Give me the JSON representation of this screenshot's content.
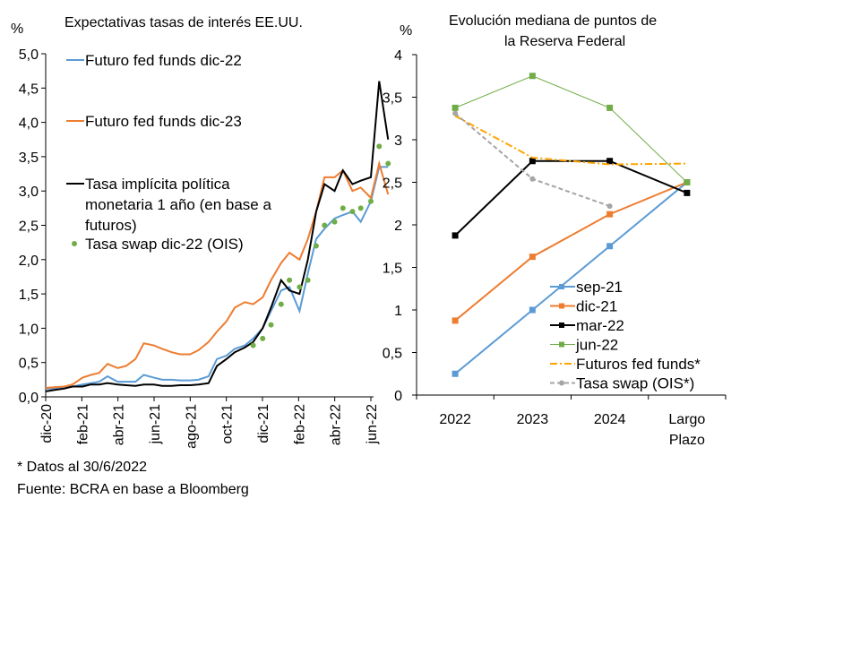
{
  "chart_data": [
    {
      "type": "line",
      "title": "Expectativas tasas de interés EE.UU.",
      "ylabel": "%",
      "ylim": [
        0,
        5
      ],
      "yticks": [
        "0,0",
        "0,5",
        "1,0",
        "1,5",
        "2,0",
        "2,5",
        "3,0",
        "3,5",
        "4,0",
        "4,5",
        "5,0"
      ],
      "xticks": [
        "dic-20",
        "feb-21",
        "abr-21",
        "jun-21",
        "ago-21",
        "oct-21",
        "dic-21",
        "feb-22",
        "abr-22",
        "jun-22"
      ],
      "grid": false,
      "legend": "top-left",
      "x": [
        "2020-12-01",
        "2020-12-15",
        "2021-01-01",
        "2021-01-15",
        "2021-02-01",
        "2021-02-15",
        "2021-03-01",
        "2021-03-15",
        "2021-04-01",
        "2021-04-15",
        "2021-05-01",
        "2021-05-15",
        "2021-06-01",
        "2021-06-15",
        "2021-07-01",
        "2021-07-15",
        "2021-08-01",
        "2021-08-15",
        "2021-09-01",
        "2021-09-15",
        "2021-10-01",
        "2021-10-15",
        "2021-11-01",
        "2021-11-15",
        "2021-12-01",
        "2021-12-15",
        "2022-01-01",
        "2022-01-15",
        "2022-02-01",
        "2022-02-15",
        "2022-03-01",
        "2022-03-15",
        "2022-04-01",
        "2022-04-15",
        "2022-05-01",
        "2022-05-15",
        "2022-06-01",
        "2022-06-15",
        "2022-06-30"
      ],
      "series": [
        {
          "name": "Futuro fed funds dic-22",
          "color": "#5b9bd5",
          "style": "line",
          "values": [
            0.12,
            0.12,
            0.13,
            0.15,
            0.18,
            0.2,
            0.22,
            0.3,
            0.22,
            0.22,
            0.22,
            0.32,
            0.28,
            0.25,
            0.25,
            0.24,
            0.24,
            0.25,
            0.3,
            0.55,
            0.6,
            0.7,
            0.75,
            0.85,
            1.0,
            1.25,
            1.55,
            1.6,
            1.25,
            1.8,
            2.3,
            2.45,
            2.6,
            2.65,
            2.7,
            2.55,
            2.85,
            3.35,
            3.35
          ]
        },
        {
          "name": "Futuro fed funds dic-23",
          "color": "#ed7d31",
          "style": "line",
          "values": [
            0.13,
            0.14,
            0.15,
            0.18,
            0.28,
            0.32,
            0.35,
            0.48,
            0.42,
            0.45,
            0.55,
            0.78,
            0.75,
            0.7,
            0.65,
            0.62,
            0.62,
            0.68,
            0.8,
            0.95,
            1.1,
            1.3,
            1.38,
            1.35,
            1.45,
            1.7,
            1.95,
            2.1,
            2.0,
            2.3,
            2.7,
            3.2,
            3.2,
            3.3,
            3.0,
            3.05,
            2.9,
            3.4,
            2.95
          ]
        },
        {
          "name": "Tasa implícita política monetaria 1 año (en base a futuros)",
          "color": "#000000",
          "style": "line",
          "values": [
            0.08,
            0.1,
            0.12,
            0.15,
            0.15,
            0.18,
            0.18,
            0.2,
            0.18,
            0.17,
            0.16,
            0.18,
            0.18,
            0.16,
            0.16,
            0.17,
            0.17,
            0.18,
            0.2,
            0.45,
            0.55,
            0.65,
            0.72,
            0.8,
            1.0,
            1.3,
            1.7,
            1.55,
            1.5,
            2.0,
            2.7,
            3.1,
            3.0,
            3.3,
            3.1,
            3.15,
            3.2,
            4.6,
            3.75
          ]
        },
        {
          "name": "Tasa swap dic-22 (OIS)",
          "color": "#70ad47",
          "style": "dots",
          "values": [
            null,
            null,
            null,
            null,
            null,
            null,
            null,
            null,
            null,
            null,
            null,
            null,
            null,
            null,
            null,
            null,
            null,
            null,
            null,
            null,
            null,
            null,
            null,
            0.75,
            0.85,
            1.05,
            1.35,
            1.7,
            1.6,
            1.7,
            2.2,
            2.5,
            2.55,
            2.75,
            2.7,
            2.75,
            2.85,
            3.65,
            3.4
          ]
        }
      ],
      "legend_lines": {
        "s0": [
          "Futuro fed funds dic-22"
        ],
        "s1": [
          "Futuro fed funds dic-23"
        ],
        "s2": [
          "Tasa implícita política",
          "monetaria 1 año (en base a",
          "futuros)"
        ],
        "s3": [
          "Tasa swap dic-22 (OIS)"
        ]
      }
    },
    {
      "type": "line",
      "title": "Evolución mediana de puntos de la Reserva Federal",
      "title_lines": [
        "Evolución mediana de puntos de",
        "la Reserva Federal"
      ],
      "ylabel": "%",
      "ylim": [
        0,
        4
      ],
      "yticks": [
        "0",
        "0,5",
        "1",
        "1,5",
        "2",
        "2,5",
        "3",
        "3,5",
        "4"
      ],
      "categories": [
        "2022",
        "2023",
        "2024",
        "Largo Plazo"
      ],
      "category_lines": [
        [
          "2022"
        ],
        [
          "2023"
        ],
        [
          "2024"
        ],
        [
          "Largo",
          "Plazo"
        ]
      ],
      "grid": false,
      "legend": "bottom-right",
      "series": [
        {
          "name": "sep-21",
          "color": "#5b9bd5",
          "dash": "",
          "marker": "square",
          "values": [
            0.25,
            1.0,
            1.75,
            2.5
          ]
        },
        {
          "name": "dic-21",
          "color": "#ed7d31",
          "dash": "",
          "marker": "square",
          "values": [
            0.875,
            1.625,
            2.125,
            2.5
          ]
        },
        {
          "name": "mar-22",
          "color": "#000000",
          "dash": "",
          "marker": "square",
          "values": [
            1.875,
            2.75,
            2.75,
            2.375
          ]
        },
        {
          "name": "jun-22",
          "color": "#70ad47",
          "dash": "",
          "marker": "square",
          "values": [
            3.375,
            3.75,
            3.375,
            2.5
          ]
        },
        {
          "name": "Futuros fed funds*",
          "color": "#ffa500",
          "dash": "8,3,2,3",
          "marker": "none",
          "values": [
            3.28,
            2.79,
            2.71,
            2.72
          ]
        },
        {
          "name": "Tasa swap (OIS*)",
          "color": "#a5a5a5",
          "dash": "5,3",
          "marker": "circle",
          "values": [
            3.31,
            2.54,
            2.22,
            null
          ]
        }
      ]
    }
  ],
  "notes": [
    "* Datos al 30/6/2022",
    "Fuente: BCRA en base a Bloomberg"
  ]
}
